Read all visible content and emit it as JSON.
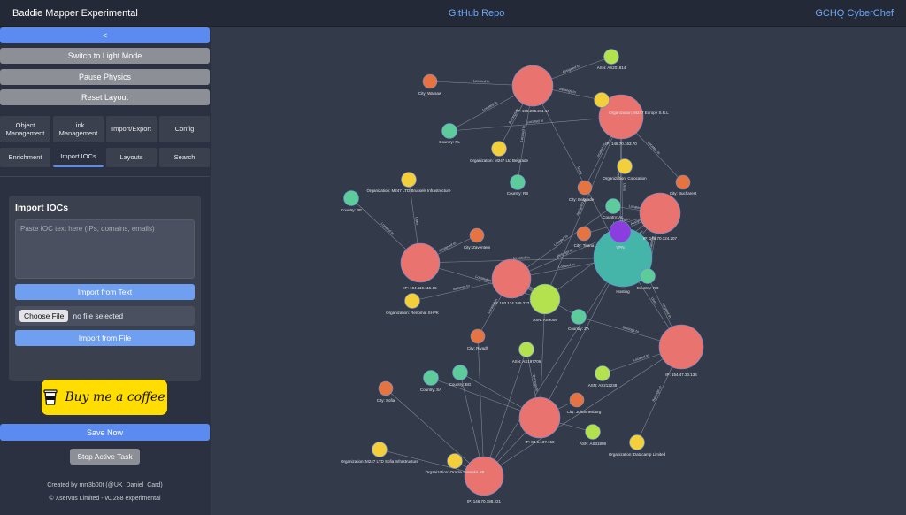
{
  "header": {
    "app_title": "Baddie Mapper Experimental",
    "github_link": "GitHub Repo",
    "cyberchef_link": "GCHQ CyberChef"
  },
  "sidebar": {
    "collapse_label": "<",
    "light_mode_label": "Switch to Light Mode",
    "pause_physics_label": "Pause Physics",
    "reset_layout_label": "Reset Layout",
    "tabs_row1": [
      "Object Management",
      "Link Management",
      "Import/Export",
      "Config"
    ],
    "tabs_row2": [
      "Enrichment",
      "Import IOCs",
      "Layouts",
      "Search"
    ],
    "active_tab": "Import IOCs",
    "import_panel": {
      "title": "Import IOCs",
      "textarea_placeholder": "Paste IOC text here (IPs, domains, emails)",
      "import_text_button": "Import from Text",
      "choose_file_button": "Choose File",
      "file_status": "no file selected",
      "import_file_button": "Import from File"
    },
    "coffee_label": "Buy me a coffee",
    "save_now_label": "Save Now",
    "stop_task_label": "Stop Active Task",
    "footer_credit": "Created by mrr3b00t (@UK_Daniel_Card)",
    "footer_copyright": "© Xservus Limited - v0.288 experimental"
  },
  "graph": {
    "colors": {
      "ip": "#e8736f",
      "asn": "#b4e14e",
      "city": "#e57440",
      "country": "#5ecb9a",
      "organization": "#f2cf3b",
      "hosting": "#44b5a8",
      "vpn": "#8b3de0",
      "edge": "#9aa0ab",
      "label": "#e6e8ec"
    },
    "nodes": [
      {
        "id": "ip1",
        "type": "ip",
        "label": "IP: 109.205.211.14"
      },
      {
        "id": "asn1",
        "type": "asn",
        "label": "ASN: AS201814"
      },
      {
        "id": "warsaw",
        "type": "city",
        "label": "City: Warsaw"
      },
      {
        "id": "org_m247eu",
        "type": "organization",
        "label": "Organization: M247 Europe S.R.L"
      },
      {
        "id": "ip2",
        "type": "ip",
        "label": "IP: 146.70.163.70"
      },
      {
        "id": "pl",
        "type": "country",
        "label": "Country: PL"
      },
      {
        "id": "org_belgrade",
        "type": "organization",
        "label": "Organization: M247 Ltd Belgrade"
      },
      {
        "id": "org_colocation",
        "type": "organization",
        "label": "Organization: Colocation"
      },
      {
        "id": "bucharest",
        "type": "city",
        "label": "City: Bucharest"
      },
      {
        "id": "rs",
        "type": "country",
        "label": "Country: RS"
      },
      {
        "id": "belgrade",
        "type": "city",
        "label": "City: Belgrade"
      },
      {
        "id": "org_brussels",
        "type": "organization",
        "label": "Organization: M247 LTD Brussels Infrastructure"
      },
      {
        "id": "be",
        "type": "country",
        "label": "Country: BE"
      },
      {
        "id": "al",
        "type": "country",
        "label": "Country: AL"
      },
      {
        "id": "ip3",
        "type": "ip",
        "label": "IP: 146.70.124.207"
      },
      {
        "id": "vpn",
        "type": "vpn",
        "label": "VPN"
      },
      {
        "id": "zaventem",
        "type": "city",
        "label": "City: Zaventem"
      },
      {
        "id": "tirana",
        "type": "city",
        "label": "City: Tirana"
      },
      {
        "id": "hosting",
        "type": "hosting",
        "label": "Hosting"
      },
      {
        "id": "ip4",
        "type": "ip",
        "label": "IP: 194.110.115.15"
      },
      {
        "id": "ip5",
        "type": "ip",
        "label": "IP: 103.124.165.227"
      },
      {
        "id": "ro",
        "type": "country",
        "label": "Country: RO"
      },
      {
        "id": "asn2",
        "type": "asn",
        "label": "ASN: AS9009"
      },
      {
        "id": "org_renomat",
        "type": "organization",
        "label": "Organization: Renomat SHPK"
      },
      {
        "id": "za",
        "type": "country",
        "label": "Country: ZA"
      },
      {
        "id": "riyadh",
        "type": "city",
        "label": "City: Riyadh"
      },
      {
        "id": "asn3",
        "type": "asn",
        "label": "ASN: AS197706"
      },
      {
        "id": "ip6",
        "type": "ip",
        "label": "IP: 154.47.30.136"
      },
      {
        "id": "asn4",
        "type": "asn",
        "label": "ASN: AS212238"
      },
      {
        "id": "sa",
        "type": "country",
        "label": "Country: SA"
      },
      {
        "id": "bg",
        "type": "country",
        "label": "Country: BG"
      },
      {
        "id": "johannesburg",
        "type": "city",
        "label": "City: Johannesburg"
      },
      {
        "id": "sofia",
        "type": "city",
        "label": "City: Sofia"
      },
      {
        "id": "ip7",
        "type": "ip",
        "label": "IP: 84.6.137.150"
      },
      {
        "id": "asn5",
        "type": "asn",
        "label": "ASN: AS31898"
      },
      {
        "id": "org_datacamp",
        "type": "organization",
        "label": "Organization: Datacamp Limited"
      },
      {
        "id": "org_sofia",
        "type": "organization",
        "label": "Organization: M247 LTD Sofia Infrastructure"
      },
      {
        "id": "org_oracle",
        "type": "organization",
        "label": "Organization: Oracle Svenska AB"
      },
      {
        "id": "ip8",
        "type": "ip",
        "label": "IP: 146.70.188.221"
      }
    ],
    "edge_labels": [
      "Located In",
      "Assigned to",
      "Located In",
      "Belongs to",
      "Located In",
      "Belongs to",
      "Uses",
      "Located In",
      "Located In",
      "Belongs to",
      "Assigned to",
      "Located In",
      "Uses",
      "Uses",
      "Assigned to",
      "Located In",
      "Located In",
      "Located In",
      "Assigned to",
      "Uses",
      "Located In",
      "Uses",
      "Assigned to",
      "Located In",
      "Located In",
      "Assigned to",
      "Located In",
      "Belongs to",
      "Located In",
      "Located In",
      "Belongs to",
      "Located In",
      "Uses",
      "Located In",
      "Belongs to",
      "Belongs to",
      "Located In",
      "Belongs to"
    ]
  }
}
